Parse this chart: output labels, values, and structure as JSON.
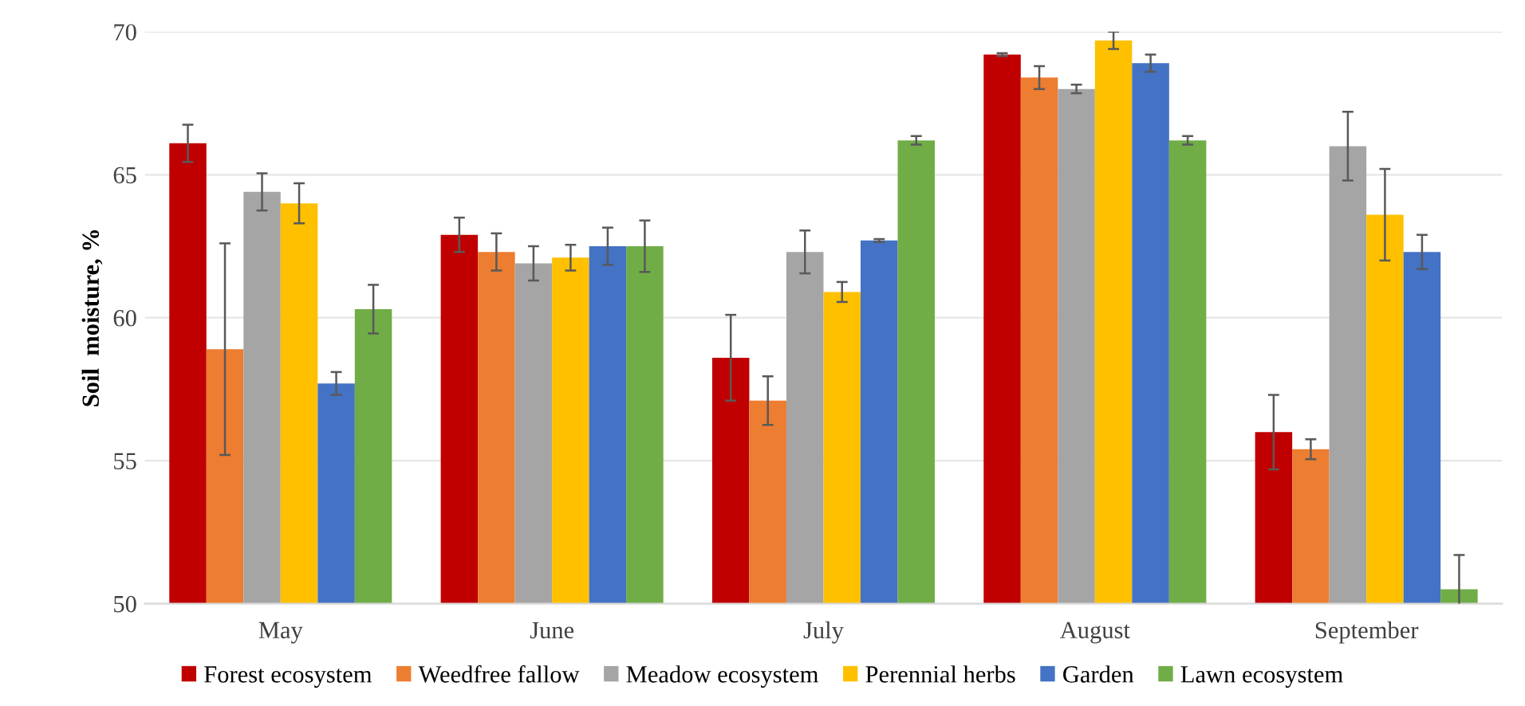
{
  "chart_data": {
    "type": "bar",
    "ylabel": "Soil  moisture, %",
    "categories": [
      "May",
      "June",
      "July",
      "August",
      "September"
    ],
    "series": [
      {
        "name": "Forest ecosystem",
        "color": "#c00000",
        "values": [
          66.1,
          62.9,
          58.6,
          69.2,
          56.0
        ],
        "errors": [
          0.65,
          0.6,
          1.5,
          0.05,
          1.3
        ]
      },
      {
        "name": "Weedfree fallow",
        "color": "#ed7d31",
        "values": [
          58.9,
          62.3,
          57.1,
          68.4,
          55.4
        ],
        "errors": [
          3.7,
          0.65,
          0.85,
          0.4,
          0.35
        ]
      },
      {
        "name": "Meadow ecosystem",
        "color": "#a5a5a5",
        "values": [
          64.4,
          61.9,
          62.3,
          68.0,
          66.0
        ],
        "errors": [
          0.65,
          0.6,
          0.75,
          0.15,
          1.2
        ]
      },
      {
        "name": "Perennial herbs",
        "color": "#ffc000",
        "values": [
          64.0,
          62.1,
          60.9,
          69.7,
          63.6
        ],
        "errors": [
          0.7,
          0.45,
          0.35,
          0.3,
          1.6
        ]
      },
      {
        "name": "Garden",
        "color": "#4472c4",
        "values": [
          57.7,
          62.5,
          62.7,
          68.9,
          62.3
        ],
        "errors": [
          0.4,
          0.65,
          0.05,
          0.3,
          0.6
        ]
      },
      {
        "name": "Lawn ecosystem",
        "color": "#70ad47",
        "values": [
          60.3,
          62.5,
          66.2,
          66.2,
          50.5
        ],
        "errors": [
          0.85,
          0.9,
          0.15,
          0.15,
          1.2
        ]
      }
    ],
    "ylim": [
      50,
      70
    ],
    "yticks": [
      50,
      55,
      60,
      65,
      70
    ],
    "grid": "y",
    "legend": "bottom"
  }
}
